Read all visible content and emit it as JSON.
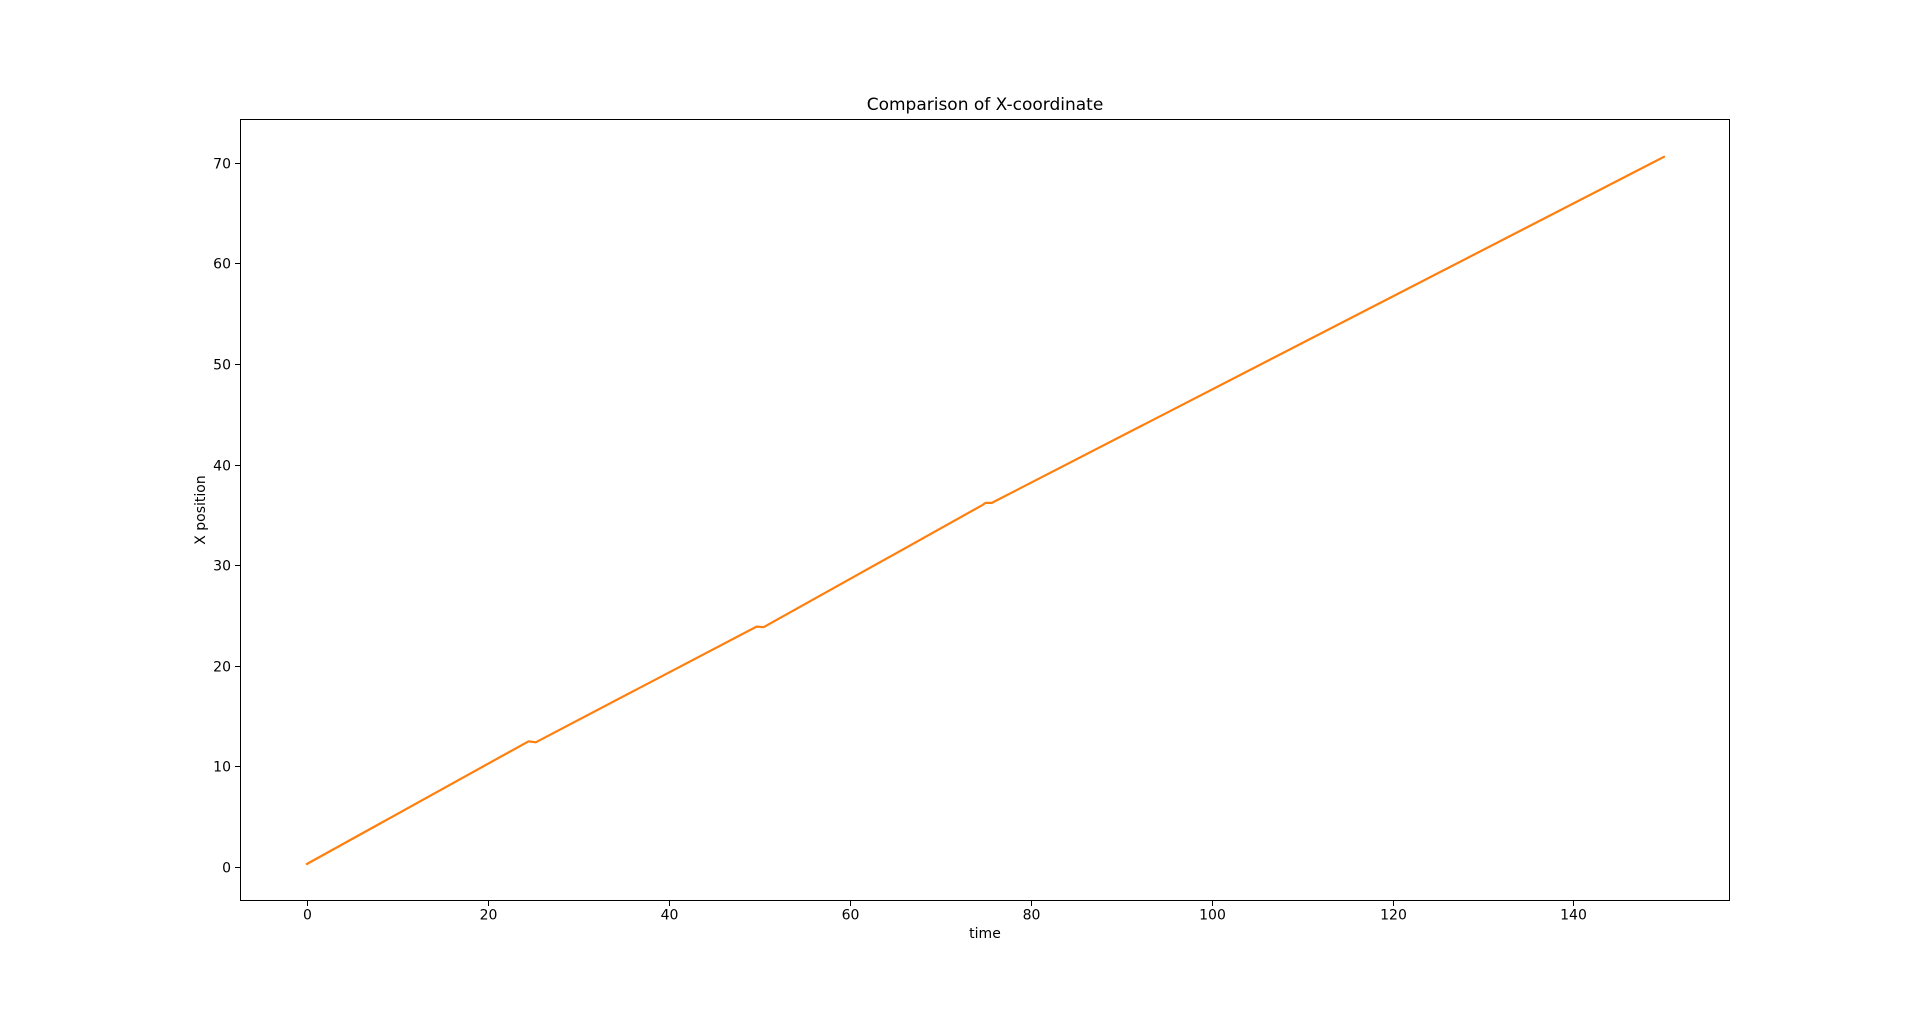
{
  "figure": {
    "background": "#ffffff",
    "text_color": "#000000",
    "spine_color": "#000000"
  },
  "chart_data": {
    "type": "line",
    "title": "Comparison of X-coordinate",
    "xlabel": "time",
    "ylabel": "X position",
    "xlim": [
      -7.4,
      157.3
    ],
    "ylim": [
      -3.38,
      74.36
    ],
    "xticks": [
      0,
      20,
      40,
      60,
      80,
      100,
      120,
      140
    ],
    "yticks": [
      0,
      10,
      20,
      30,
      40,
      50,
      60,
      70
    ],
    "grid": false,
    "legend": "none",
    "series": [
      {
        "color": "#ff7f0e",
        "line_width": 2.2,
        "points": [
          [
            0,
            0.3
          ],
          [
            24.5,
            12.5
          ],
          [
            25.3,
            12.4
          ],
          [
            49.7,
            23.9
          ],
          [
            50.5,
            23.85
          ],
          [
            74.7,
            36.0
          ],
          [
            75.0,
            36.2
          ],
          [
            75.7,
            36.2
          ],
          [
            150,
            70.6
          ]
        ]
      }
    ]
  }
}
